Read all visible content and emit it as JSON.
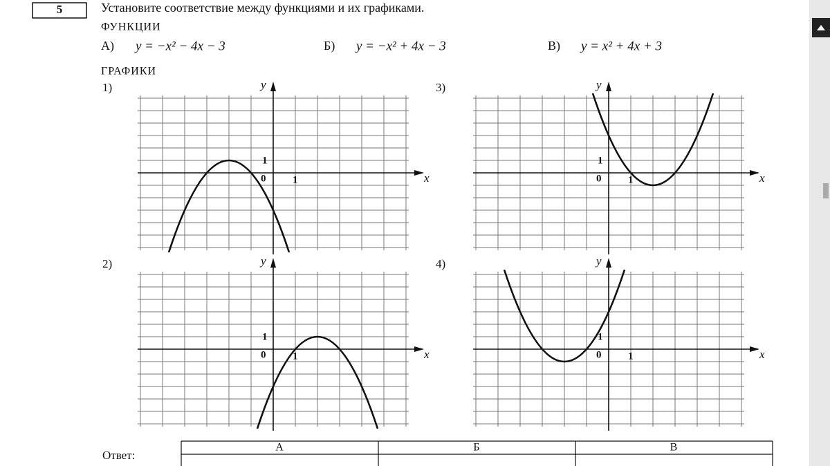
{
  "task": {
    "number": "5",
    "instruction": "Установите соответствие между функциями и их графиками."
  },
  "functions": {
    "heading": "ФУНКЦИИ",
    "items": [
      {
        "label": "А)",
        "formula": "y = −x² − 4x − 3"
      },
      {
        "label": "Б)",
        "formula": "y = −x² + 4x − 3"
      },
      {
        "label": "В)",
        "formula": "y = x² + 4x + 3"
      }
    ]
  },
  "graphs": {
    "heading": "ГРАФИКИ",
    "items": [
      {
        "label": "1)",
        "y_axis": "y",
        "x_axis": "x",
        "origin": 0,
        "y_unit": 1,
        "x_unit": 1
      },
      {
        "label": "2)",
        "y_axis": "y",
        "x_axis": "x",
        "origin": 0,
        "y_unit": 1,
        "x_unit": 1
      },
      {
        "label": "3)",
        "y_axis": "y",
        "x_axis": "x",
        "origin": 0,
        "y_unit": 1,
        "x_unit": 1
      },
      {
        "label": "4)",
        "y_axis": "y",
        "x_axis": "x",
        "origin": 0,
        "y_unit": 1,
        "x_unit": 1
      }
    ]
  },
  "answer": {
    "label": "Ответ:",
    "columns": [
      "А",
      "Б",
      "В"
    ]
  }
}
